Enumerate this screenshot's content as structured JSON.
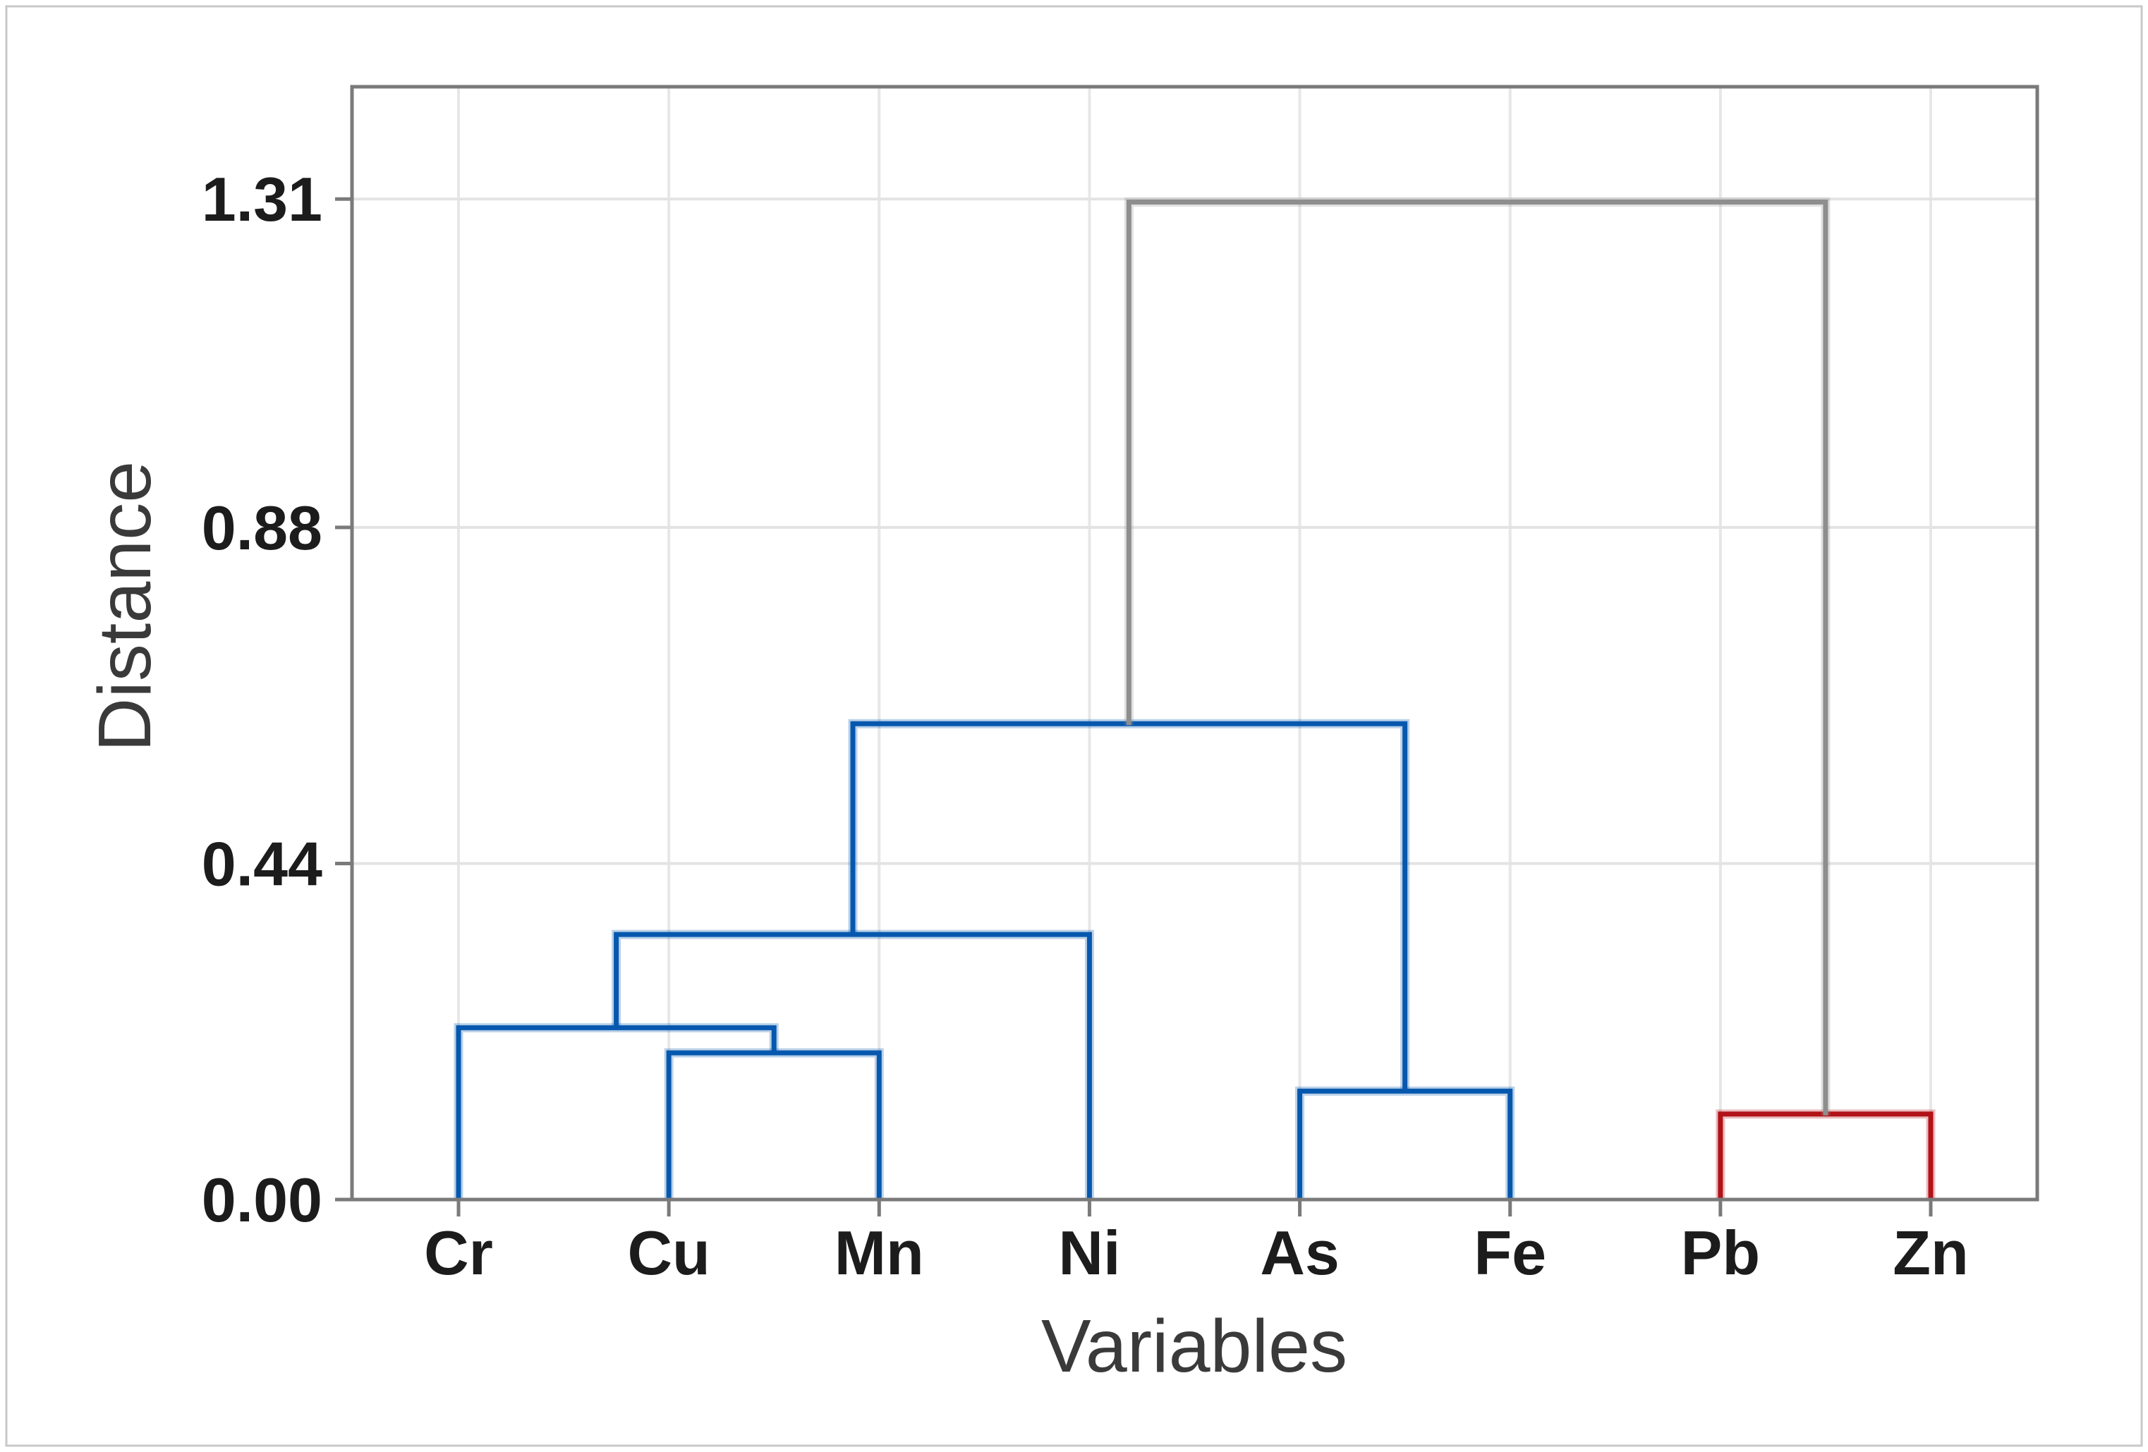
{
  "chart_data": {
    "type": "dendrogram",
    "title": "",
    "xlabel": "Variables",
    "ylabel": "Distance",
    "leaves": [
      "Cr",
      "Cu",
      "Mn",
      "Ni",
      "As",
      "Fe",
      "Pb",
      "Zn"
    ],
    "y_ticks": [
      {
        "label": "0.00",
        "value": 0.0
      },
      {
        "label": "0.44",
        "value": 0.44
      },
      {
        "label": "0.88",
        "value": 0.88
      },
      {
        "label": "1.31",
        "value": 1.31
      }
    ],
    "ylim": [
      0,
      1.457
    ],
    "grid": {
      "vertical_at_leaves": true,
      "horizontal_at_ticks": true
    },
    "merges": [
      {
        "id": "m1",
        "a": "Cu",
        "b": "Mn",
        "height": 0.192,
        "color": "blue"
      },
      {
        "id": "m2",
        "a": "Cr",
        "b": "m1",
        "height": 0.225,
        "color": "blue"
      },
      {
        "id": "m3",
        "a": "m2",
        "b": "Ni",
        "height": 0.347,
        "color": "blue"
      },
      {
        "id": "m4",
        "a": "As",
        "b": "Fe",
        "height": 0.142,
        "color": "blue"
      },
      {
        "id": "m5",
        "a": "m3",
        "b": "m4",
        "height": 0.623,
        "color": "blue"
      },
      {
        "id": "m6",
        "a": "Pb",
        "b": "Zn",
        "height": 0.112,
        "color": "red"
      },
      {
        "id": "m7",
        "a": "m5",
        "b": "m6",
        "height": 1.306,
        "color": "gray"
      }
    ],
    "colors": {
      "blue": "#0658AE",
      "red": "#B11318",
      "gray": "#8E8E8E",
      "axis_border": "#7a7a7a",
      "grid_vertical": "#e7e7e7",
      "grid_horizontal": "#e3e3e3",
      "tick_mark": "#7a7a7a",
      "outer_frame": "#c8c8c8",
      "tick_text": "#1c1c1c",
      "title_text": "#3a3a3a"
    }
  }
}
